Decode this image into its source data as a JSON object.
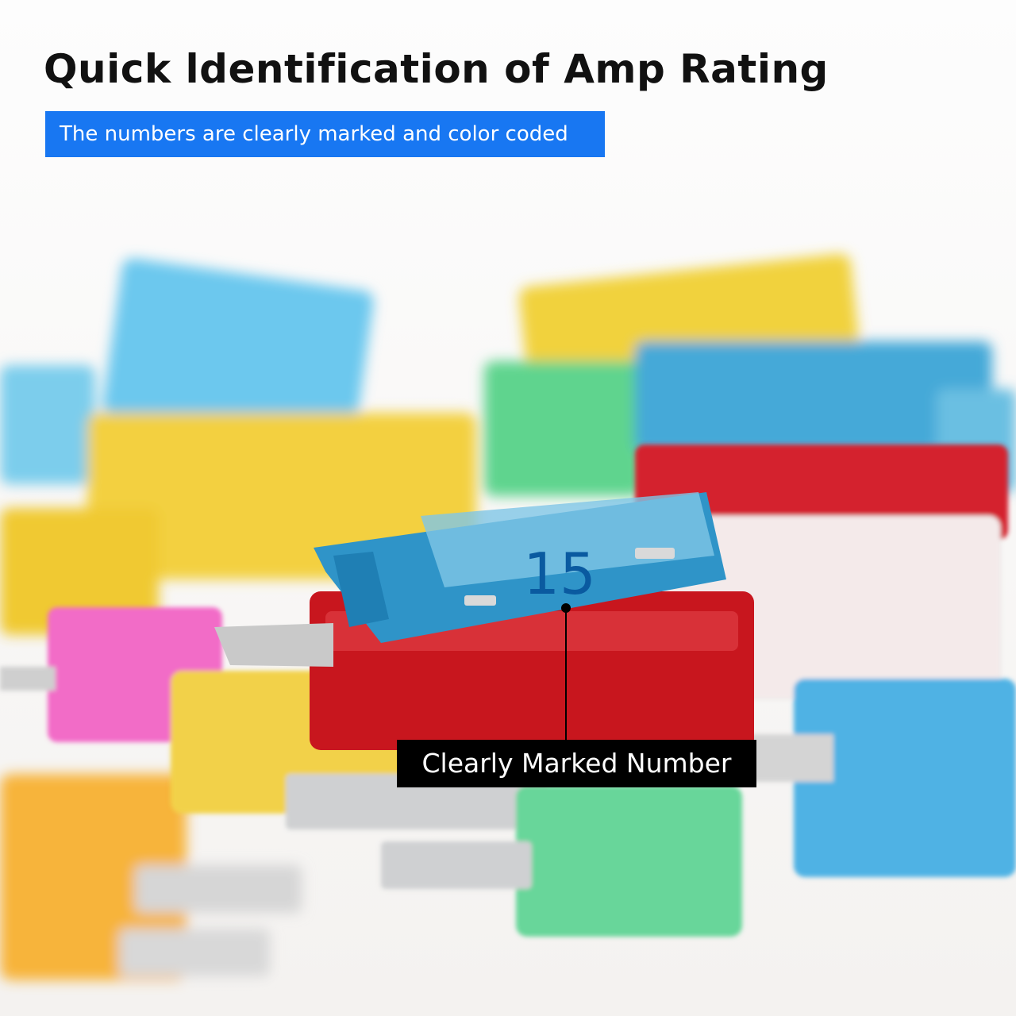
{
  "header": {
    "title": "Quick ldentification of Amp Rating",
    "subtitle": "The numbers are clearly marked and color coded"
  },
  "photo": {
    "fuse_label": "15",
    "callout": "Clearly Marked Number"
  }
}
